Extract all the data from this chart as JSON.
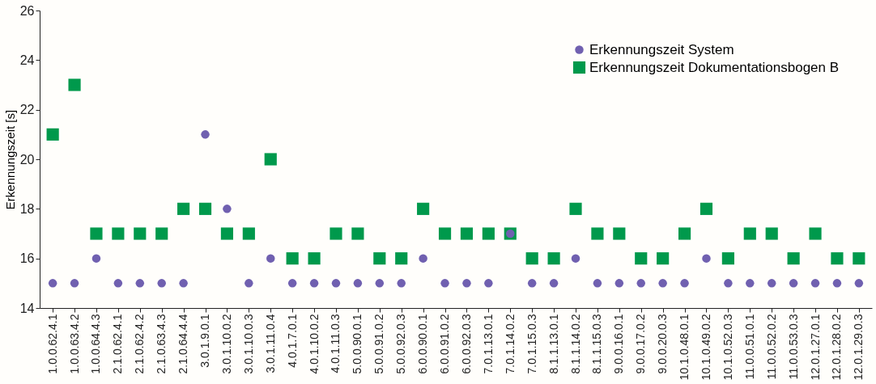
{
  "chart_data": {
    "type": "scatter",
    "ylabel": "Erkennungszeit [s]",
    "categories": [
      "1.0.0.62.4.1",
      "1.0.0.63.4.2",
      "1.0.0.64.4.3",
      "2.1.0.62.4.1",
      "2.1.0.62.4.2",
      "2.1.0.63.4.3",
      "2.1.0.64.4.4",
      "3.0.1.9.0.1",
      "3.0.1.10.0.2",
      "3.0.1.10.0.3",
      "3.0.1.11.0.4",
      "4.0.1.7.0.1",
      "4.0.1.10.0.2",
      "4.0.1.11.0.3",
      "5.0.0.90.0.1",
      "5.0.0.91.0.2",
      "5.0.0.92.0.3",
      "6.0.0.90.0.1",
      "6.0.0.91.0.2",
      "6.0.0.92.0.3",
      "7.0.1.13.0.1",
      "7.0.1.14.0.2",
      "7.0.1.15.0.3",
      "8.1.1.13.0.1",
      "8.1.1.14.0.2",
      "8.1.1.15.0.3",
      "9.0.0.16.0.1",
      "9.0.0.17.0.2",
      "9.0.0.20.0.3",
      "10.1.0.48.0.1",
      "10.1.0.49.0.2",
      "10.1.0.52.0.3",
      "11.0.0.51.0.1",
      "11.0.0.52.0.2",
      "11.0.0.53.0.3",
      "12.0.1.27.0.1",
      "12.0.1.28.0.2",
      "12.0.1.29.0.3"
    ],
    "series": [
      {
        "name": "Erkennungszeit System",
        "color": "#7060b0",
        "marker": "circle",
        "values": [
          15,
          15,
          16,
          15,
          15,
          15,
          15,
          21,
          18,
          15,
          16,
          15,
          15,
          15,
          15,
          15,
          15,
          16,
          15,
          15,
          15,
          17,
          15,
          15,
          16,
          15,
          15,
          15,
          15,
          15,
          16,
          15,
          15,
          15,
          15,
          15,
          15,
          15
        ]
      },
      {
        "name": "Erkennungszeit Dokumentationsbogen B",
        "color": "#00994c",
        "marker": "square",
        "values": [
          21,
          23,
          17,
          17,
          17,
          17,
          18,
          18,
          17,
          17,
          20,
          16,
          16,
          17,
          17,
          16,
          16,
          18,
          17,
          17,
          17,
          17,
          16,
          16,
          18,
          17,
          17,
          16,
          16,
          17,
          18,
          16,
          17,
          17,
          16,
          17,
          16,
          16
        ]
      }
    ],
    "ylim": [
      14,
      26
    ],
    "yticks": [
      14,
      16,
      18,
      20,
      22,
      24,
      26
    ],
    "grid": false,
    "legend": "top right"
  }
}
